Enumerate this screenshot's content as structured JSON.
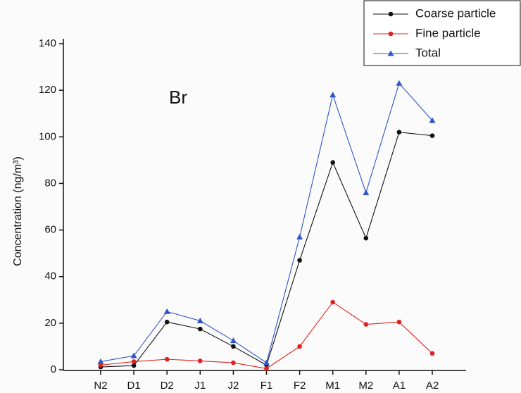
{
  "chart_data": {
    "type": "line",
    "annotation": "Br",
    "y_label": "Concentration (ng/m³)",
    "categories": [
      "N2",
      "D1",
      "D2",
      "J1",
      "J2",
      "F1",
      "F2",
      "M1",
      "M2",
      "A1",
      "A2"
    ],
    "series": [
      {
        "name": "Coarse particle",
        "color": "#111111",
        "marker": "circle",
        "values": [
          1.2,
          1.8,
          20.5,
          17.5,
          10,
          2,
          47,
          89,
          56.5,
          102,
          100.5
        ]
      },
      {
        "name": "Fine particle",
        "color": "#e02020",
        "marker": "circle",
        "values": [
          2,
          3.5,
          4.5,
          3.8,
          3,
          0.5,
          10,
          29,
          19.5,
          20.5,
          7
        ]
      },
      {
        "name": "Total",
        "color": "#2f55c8",
        "marker": "triangle",
        "values": [
          3.5,
          6,
          25,
          21,
          12.5,
          3,
          57,
          118,
          76,
          123,
          107
        ]
      }
    ],
    "ylim": [
      0,
      140
    ],
    "yticks": [
      0,
      20,
      40,
      60,
      80,
      100,
      120,
      140
    ],
    "grid": false
  }
}
